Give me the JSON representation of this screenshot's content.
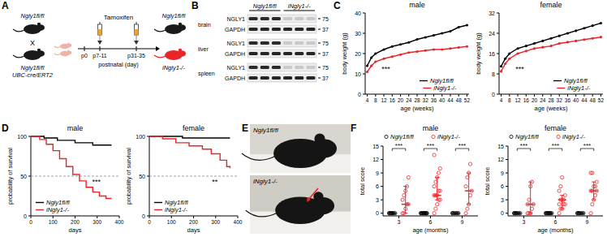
{
  "panel_labels": [
    "A",
    "B",
    "C",
    "D",
    "E",
    "F"
  ],
  "panel_a": {
    "parent1": "Ngly1fl/fl",
    "cross": "X",
    "parent2": "Ngly1fl/fl",
    "parent2_line2": "UBC-cre/ERT2",
    "treatment": "Tamoxifen",
    "timepoints": [
      "p0",
      "p7-11",
      "p31-35"
    ],
    "axis_label": "postnatal (day)",
    "offspring": [
      "Ngly1fl/fl",
      "iNgly1-/-"
    ]
  },
  "panel_b": {
    "groups": [
      "Ngly1fl/fl",
      "iNgly1-/-"
    ],
    "tissues": [
      "brain",
      "liver",
      "spleen"
    ],
    "proteins": [
      "NGLY1",
      "GAPDH"
    ],
    "mw_markers": [
      75,
      37
    ]
  },
  "panel_e": {
    "labels": [
      "Ngly1fl/fl",
      "iNgly1-/-"
    ]
  },
  "chart_data": [
    {
      "type": "line",
      "title": "male",
      "x_label": "age (weeks)",
      "y_label": "body weight (g)",
      "x": [
        4,
        6,
        8,
        12,
        16,
        20,
        24,
        28,
        32,
        36,
        40,
        44,
        48,
        52
      ],
      "xlim": [
        3,
        53
      ],
      "xticks": [
        4,
        8,
        12,
        16,
        20,
        24,
        28,
        32,
        36,
        40,
        44,
        48,
        52
      ],
      "ylim": [
        0,
        40
      ],
      "yticks": [
        0,
        10,
        20,
        30,
        40
      ],
      "series": [
        {
          "name": "Ngly1fl/fl",
          "color": "#000000",
          "marker": "circle",
          "values": [
            14,
            18,
            20,
            22,
            23.5,
            24.5,
            25.5,
            27,
            28,
            29,
            30,
            31,
            33,
            34
          ]
        },
        {
          "name": "iNgly1-/-",
          "color": "#e8262a",
          "marker": "circle",
          "values": [
            11,
            14,
            16,
            17.5,
            18.5,
            19.5,
            20.5,
            21,
            21.5,
            22,
            22,
            22.5,
            23,
            23.5
          ]
        }
      ],
      "legend": "lower right",
      "annotations": [
        {
          "text": "***"
        }
      ]
    },
    {
      "type": "line",
      "title": "female",
      "x_label": "age (weeks)",
      "y_label": "body weight (g)",
      "x": [
        4,
        6,
        8,
        12,
        16,
        20,
        24,
        28,
        32,
        36,
        40,
        44,
        48,
        52
      ],
      "xlim": [
        3,
        53
      ],
      "xticks": [
        4,
        8,
        12,
        16,
        20,
        24,
        28,
        32,
        36,
        40,
        44,
        48,
        52
      ],
      "ylim": [
        0,
        32
      ],
      "yticks": [
        0,
        8,
        16,
        24,
        32
      ],
      "series": [
        {
          "name": "Ngly1fl/fl",
          "color": "#000000",
          "marker": "circle",
          "values": [
            11,
            14,
            16,
            18,
            19,
            20,
            21,
            22,
            23,
            24,
            25,
            26,
            27,
            28
          ]
        },
        {
          "name": "iNgly1-/-",
          "color": "#e8262a",
          "marker": "circle",
          "values": [
            9,
            12,
            14,
            16,
            17,
            18,
            18.5,
            19,
            20,
            20.5,
            21,
            21.5,
            22,
            22.5
          ]
        }
      ],
      "legend": "lower right",
      "annotations": [
        {
          "text": "***"
        }
      ]
    },
    {
      "type": "step",
      "title": "male",
      "x_label": "days",
      "y_label": "probability of survival",
      "xlim": [
        0,
        400
      ],
      "xticks": [
        0,
        100,
        200,
        300,
        400
      ],
      "ylim": [
        0,
        100
      ],
      "yticks": [
        0,
        50,
        100
      ],
      "reference_line": 50,
      "series": [
        {
          "name": "Ngly1fl/fl",
          "color": "#000000",
          "x": [
            0,
            60,
            120,
            200,
            280,
            365
          ],
          "values": [
            100,
            98,
            95,
            92,
            89,
            89
          ]
        },
        {
          "name": "iNgly1-/-",
          "color": "#e8262a",
          "x": [
            0,
            40,
            70,
            100,
            130,
            160,
            190,
            220,
            250,
            280,
            310,
            340,
            365
          ],
          "values": [
            100,
            96,
            90,
            82,
            72,
            62,
            52,
            44,
            36,
            30,
            25,
            22,
            22
          ]
        }
      ],
      "legend": "lower left",
      "annotations": [
        {
          "text": "***"
        }
      ]
    },
    {
      "type": "step",
      "title": "female",
      "x_label": "days",
      "y_label": "probability of survival",
      "xlim": [
        0,
        400
      ],
      "xticks": [
        0,
        100,
        200,
        300,
        400
      ],
      "ylim": [
        0,
        100
      ],
      "yticks": [
        0,
        50,
        100
      ],
      "reference_line": 50,
      "series": [
        {
          "name": "Ngly1fl/fl",
          "color": "#000000",
          "x": [
            0,
            150,
            365
          ],
          "values": [
            100,
            98,
            98
          ]
        },
        {
          "name": "iNgly1-/-",
          "color": "#e8262a",
          "x": [
            0,
            60,
            120,
            180,
            240,
            280,
            320,
            350,
            365
          ],
          "values": [
            100,
            97,
            92,
            88,
            84,
            78,
            70,
            62,
            60
          ]
        }
      ],
      "legend": "lower left",
      "annotations": [
        {
          "text": "**"
        }
      ]
    },
    {
      "type": "dot",
      "title": "male",
      "x_label": "age (months)",
      "y_label": "total score",
      "categories": [
        "3",
        "6",
        "9"
      ],
      "ylim": [
        -0.6,
        15
      ],
      "yticks": [
        0,
        3,
        6,
        9,
        12,
        15
      ],
      "series": [
        {
          "name": "Ngly1fl/fl",
          "color": "#000000",
          "marker": "circle",
          "values": [
            [
              0,
              0,
              0,
              0,
              0,
              0,
              0,
              0
            ],
            [
              0,
              0,
              0,
              0,
              0,
              0,
              0,
              0,
              0,
              0
            ],
            [
              0,
              0,
              0,
              0,
              0,
              0
            ]
          ],
          "median": [
            0,
            0,
            0
          ],
          "error_low": [
            0,
            0,
            0
          ],
          "error_high": [
            0,
            0,
            0
          ]
        },
        {
          "name": "iNgly1-/-",
          "color": "#e8262a",
          "marker": "circle",
          "values": [
            [
              0,
              0,
              1,
              2,
              2,
              3,
              4,
              5,
              6,
              8
            ],
            [
              0,
              1,
              2,
              3,
              3,
              4,
              4,
              4,
              5,
              5,
              6,
              7,
              8,
              9,
              10,
              13
            ],
            [
              0,
              1,
              2,
              4,
              5,
              6,
              8,
              9,
              11
            ]
          ],
          "median": [
            2,
            4,
            5
          ],
          "error_low": [
            0,
            3,
            2
          ],
          "error_high": [
            6,
            8,
            9
          ]
        }
      ],
      "legend": "upper left",
      "annotations": [
        {
          "text": "***",
          "x": "3"
        },
        {
          "text": "***",
          "x": "6"
        },
        {
          "text": "***",
          "x": "9"
        }
      ]
    },
    {
      "type": "dot",
      "title": "female",
      "x_label": "age (months)",
      "y_label": "total score",
      "categories": [
        "3",
        "6",
        "9"
      ],
      "ylim": [
        -0.6,
        15
      ],
      "yticks": [
        0,
        3,
        6,
        9,
        12,
        15
      ],
      "series": [
        {
          "name": "Ngly1fl/fl",
          "color": "#000000",
          "marker": "circle",
          "values": [
            [
              0,
              0,
              0,
              0,
              0,
              0,
              0
            ],
            [
              0,
              0,
              0,
              0,
              0,
              0,
              0,
              0,
              0
            ],
            [
              0,
              0,
              0,
              0,
              0,
              0,
              0
            ]
          ],
          "median": [
            0,
            0,
            0
          ],
          "error_low": [
            0,
            0,
            0
          ],
          "error_high": [
            0,
            0,
            0
          ]
        },
        {
          "name": "iNgly1-/-",
          "color": "#e8262a",
          "marker": "circle",
          "values": [
            [
              0,
              0,
              0,
              1,
              2,
              2,
              3,
              6,
              7
            ],
            [
              0,
              1,
              1,
              2,
              2,
              2,
              3,
              3,
              3,
              4,
              5,
              6,
              8
            ],
            [
              0,
              2,
              3,
              4,
              5,
              5,
              5,
              6,
              6,
              7,
              9,
              9
            ]
          ],
          "median": [
            2,
            3,
            5
          ],
          "error_low": [
            0,
            1,
            3
          ],
          "error_high": [
            7,
            4,
            7
          ]
        }
      ],
      "legend": "upper left",
      "annotations": [
        {
          "text": "***",
          "x": "3"
        },
        {
          "text": "***",
          "x": "6"
        },
        {
          "text": "***",
          "x": "9"
        }
      ]
    }
  ]
}
